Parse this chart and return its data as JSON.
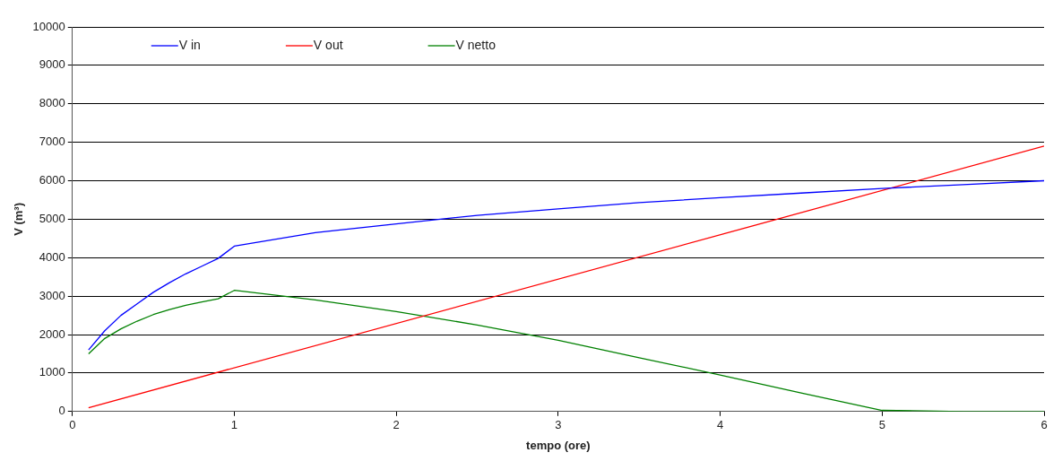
{
  "chart_data": {
    "type": "line",
    "xlabel": "tempo (ore)",
    "ylabel": "V (m³)",
    "xlim": [
      0,
      6
    ],
    "xticks": [
      0,
      1,
      2,
      3,
      4,
      5,
      6
    ],
    "ylim": [
      0,
      10000
    ],
    "yticks": [
      0,
      1000,
      2000,
      3000,
      4000,
      5000,
      6000,
      7000,
      8000,
      9000,
      10000
    ],
    "grid": "y",
    "legend": "top left",
    "marker": "none",
    "line_style": "solid",
    "series": [
      {
        "name": "V in",
        "color": "#0000ff",
        "x": [
          0.1,
          0.2,
          0.3,
          0.4,
          0.5,
          0.6,
          0.7,
          0.8,
          0.9,
          1,
          1.5,
          2,
          2.5,
          3,
          3.5,
          4,
          4.5,
          5,
          5.5,
          6
        ],
        "values": [
          1600,
          2100,
          2500,
          2800,
          3100,
          3350,
          3580,
          3780,
          3980,
          4300,
          4650,
          4880,
          5100,
          5270,
          5430,
          5560,
          5680,
          5800,
          5900,
          6000
        ]
      },
      {
        "name": "V out",
        "color": "#ff0000",
        "x": [
          0.1,
          6
        ],
        "values": [
          100,
          6900
        ]
      },
      {
        "name": "V netto",
        "color": "#008000",
        "x": [
          0.1,
          0.2,
          0.3,
          0.4,
          0.5,
          0.6,
          0.7,
          0.8,
          0.9,
          1,
          1.5,
          2,
          2.5,
          3,
          3.5,
          4,
          4.5,
          5,
          5.5,
          6
        ],
        "values": [
          1500,
          1900,
          2150,
          2350,
          2520,
          2650,
          2760,
          2850,
          2930,
          3150,
          2900,
          2600,
          2250,
          1850,
          1400,
          950,
          480,
          30,
          0,
          0
        ]
      }
    ]
  }
}
